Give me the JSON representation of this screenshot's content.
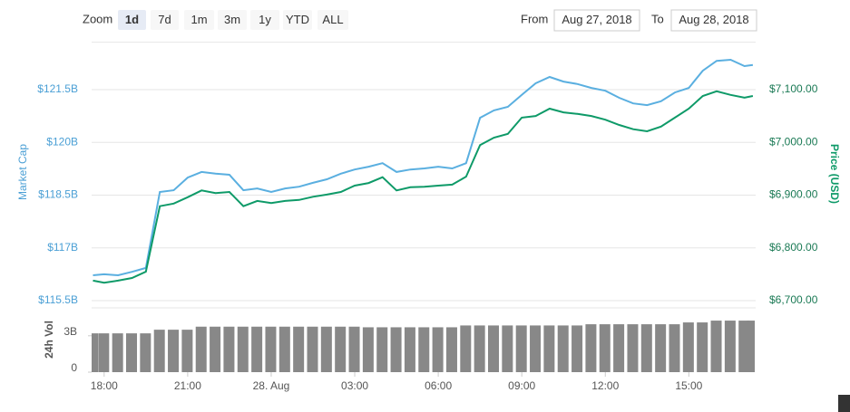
{
  "controls": {
    "zoom_label": "Zoom",
    "zoom_buttons": [
      "1d",
      "7d",
      "1m",
      "3m",
      "1y",
      "YTD",
      "ALL"
    ],
    "selected_button": 0,
    "from_label": "From",
    "from": "Aug 27, 2018",
    "to_label": "To",
    "to": "Aug 28, 2018"
  },
  "chart_data": [
    {
      "type": "line",
      "ylabel": "Market Cap",
      "y2label": "Price (USD)",
      "x": [
        17.6,
        18,
        18.5,
        19,
        19.5,
        20,
        20.5,
        21,
        21.5,
        22,
        22.5,
        23,
        23.5,
        24,
        24.5,
        25,
        25.5,
        26,
        26.5,
        27,
        27.5,
        28,
        28.5,
        29,
        29.5,
        30,
        30.5,
        31,
        31.5,
        32,
        32.5,
        33,
        33.5,
        34,
        34.5,
        35,
        35.5,
        36,
        36.5,
        37,
        37.5,
        38,
        38.5,
        39,
        39.5,
        40,
        40.5,
        41,
        41.3
      ],
      "xlim": [
        17.55,
        41.4
      ],
      "ylim": [
        115.5,
        122.85
      ],
      "yticks": [
        {
          "value": 115.5,
          "label": "$115.5B"
        },
        {
          "value": 117,
          "label": "$117B"
        },
        {
          "value": 118.5,
          "label": "$118.5B"
        },
        {
          "value": 120,
          "label": "$120B"
        },
        {
          "value": 121.5,
          "label": "$121.5B"
        }
      ],
      "y2lim": [
        6700,
        7190
      ],
      "y2ticks": [
        {
          "value": 6700,
          "label": "$6,700.00"
        },
        {
          "value": 6800,
          "label": "$6,800.00"
        },
        {
          "value": 6900,
          "label": "$6,900.00"
        },
        {
          "value": 7000,
          "label": "$7,000.00"
        },
        {
          "value": 7100,
          "label": "$7,100.00"
        }
      ],
      "grid": true,
      "series": [
        {
          "color": "#5aafe0",
          "axis": "y",
          "values": [
            116.22,
            116.25,
            116.22,
            116.32,
            116.43,
            118.59,
            118.64,
            119.0,
            119.16,
            119.11,
            119.08,
            118.64,
            118.69,
            118.59,
            118.69,
            118.74,
            118.85,
            118.95,
            119.11,
            119.23,
            119.31,
            119.41,
            119.16,
            119.23,
            119.26,
            119.31,
            119.26,
            119.41,
            120.7,
            120.91,
            121.01,
            121.35,
            121.68,
            121.86,
            121.73,
            121.66,
            121.55,
            121.47,
            121.27,
            121.11,
            121.06,
            121.17,
            121.42,
            121.55,
            122.04,
            122.32,
            122.35,
            122.17,
            122.2
          ]
        },
        {
          "color": "#0e9a68",
          "axis": "y2",
          "values": [
            6738,
            6734,
            6738,
            6743,
            6755,
            6879,
            6884,
            6896,
            6909,
            6904,
            6906,
            6879,
            6889,
            6885,
            6889,
            6891,
            6897,
            6901,
            6906,
            6918,
            6923,
            6934,
            6909,
            6915,
            6916,
            6918,
            6920,
            6935,
            6995,
            7009,
            7016,
            7047,
            7050,
            7064,
            7057,
            7054,
            7050,
            7043,
            7033,
            7025,
            7021,
            7030,
            7047,
            7064,
            7088,
            7097,
            7090,
            7085,
            7088
          ]
        }
      ]
    },
    {
      "type": "bar",
      "ylabel": "24h Vol",
      "x": [
        17.6,
        18,
        18.5,
        19,
        19.5,
        20,
        20.5,
        21,
        21.5,
        22,
        22.5,
        23,
        23.5,
        24,
        24.5,
        25,
        25.5,
        26,
        26.5,
        27,
        27.5,
        28,
        28.5,
        29,
        29.5,
        30,
        30.5,
        31,
        31.5,
        32,
        32.5,
        33,
        33.5,
        34,
        34.5,
        35,
        35.5,
        36,
        36.5,
        37,
        37.5,
        38,
        38.5,
        39,
        39.5,
        40,
        40.5,
        41,
        41.3
      ],
      "xlim": [
        17.55,
        41.4
      ],
      "xticks": [
        {
          "value": 18,
          "label": "18:00"
        },
        {
          "value": 21,
          "label": "21:00"
        },
        {
          "value": 24,
          "label": "28. Aug"
        },
        {
          "value": 27,
          "label": "03:00"
        },
        {
          "value": 30,
          "label": "06:00"
        },
        {
          "value": 33,
          "label": "09:00"
        },
        {
          "value": 36,
          "label": "12:00"
        },
        {
          "value": 39,
          "label": "15:00"
        }
      ],
      "ylim": [
        0,
        5.3
      ],
      "yticks": [
        0,
        {
          "value": 3,
          "label": "3B"
        }
      ],
      "color": "#888888",
      "values": [
        3.2,
        3.2,
        3.2,
        3.2,
        3.2,
        3.5,
        3.5,
        3.5,
        3.75,
        3.75,
        3.75,
        3.75,
        3.75,
        3.75,
        3.75,
        3.75,
        3.75,
        3.75,
        3.75,
        3.75,
        3.7,
        3.7,
        3.7,
        3.7,
        3.7,
        3.7,
        3.7,
        3.85,
        3.85,
        3.85,
        3.85,
        3.85,
        3.85,
        3.85,
        3.85,
        3.85,
        3.95,
        3.95,
        3.95,
        3.95,
        3.95,
        3.95,
        3.95,
        4.1,
        4.1,
        4.25,
        4.25,
        4.25,
        4.25
      ]
    }
  ]
}
